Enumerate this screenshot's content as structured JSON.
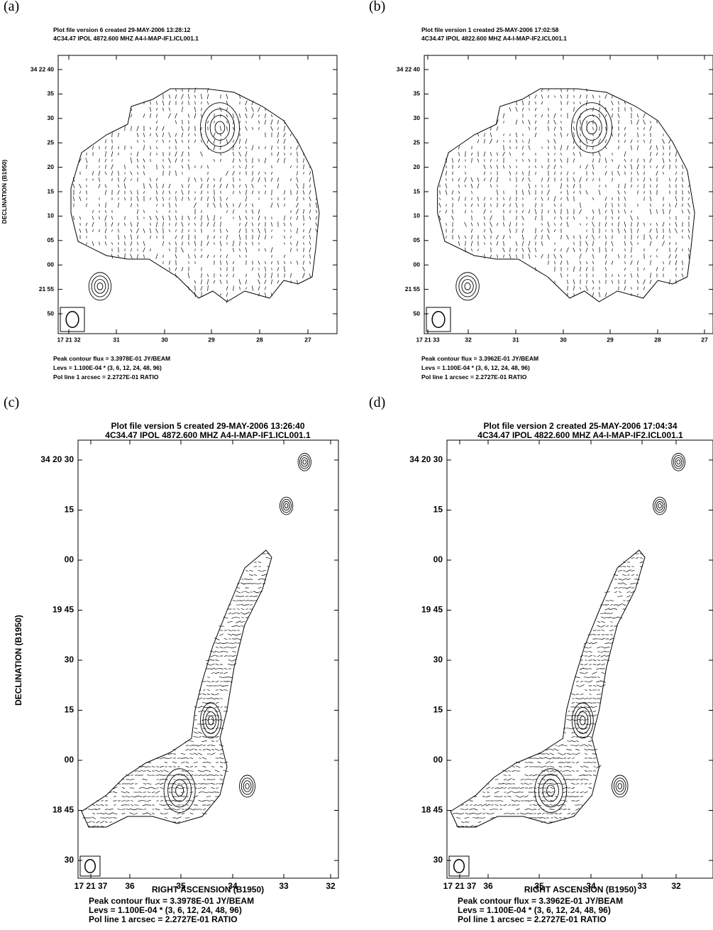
{
  "panels": [
    {
      "label": "(a)",
      "header": [
        "Plot file version 6  created 29-MAY-2006 13:28:12",
        "4C34.47  IPOL  4872.600 MHZ  A4-I-MAP-IF1.ICL001.1"
      ],
      "y_axis_label": "DECLINATION (B1950)",
      "y_ticks": [
        "34 22 40",
        "35",
        "30",
        "25",
        "20",
        "15",
        "10",
        "05",
        "00",
        "21 55",
        "50"
      ],
      "x_ticks": [
        "17 21 32",
        "31",
        "30",
        "29",
        "28",
        "27"
      ],
      "footer": [
        "Peak contour flux =  3.3978E-01 JY/BEAM",
        "Levs = 1.100E-04 * (3, 6, 12, 24, 48, 96)",
        "Pol line 1 arcsec =  2.2727E-01 RATIO"
      ]
    },
    {
      "label": "(b)",
      "header": [
        "Plot file version 1  created 25-MAY-2006 17:02:58",
        "4C34.47  IPOL  4822.600 MHZ  A4-I-MAP-IF2.ICL001.1"
      ],
      "y_ticks": [
        "34 22 40",
        "35",
        "30",
        "25",
        "20",
        "15",
        "10",
        "05",
        "00",
        "21 55",
        "50"
      ],
      "x_ticks": [
        "17 21 33",
        "32",
        "31",
        "30",
        "29",
        "28",
        "27"
      ],
      "footer": [
        "Peak contour flux =  3.3962E-01 JY/BEAM",
        "Levs = 1.100E-04 * (3, 6, 12, 24, 48, 96)",
        "Pol line 1 arcsec =  2.2727E-01 RATIO"
      ]
    },
    {
      "label": "(c)",
      "header": [
        "Plot file version 5  created 29-MAY-2006 13:26:40",
        "4C34.47  IPOL  4872.600 MHZ  A4-I-MAP-IF1.ICL001.1"
      ],
      "y_axis_label": "DECLINATION (B1950)",
      "x_axis_label": "RIGHT ASCENSION (B1950)",
      "y_ticks": [
        "34 20 30",
        "15",
        "00",
        "19 45",
        "30",
        "15",
        "00",
        "18 45",
        "30"
      ],
      "x_ticks": [
        "17 21 37",
        "36",
        "35",
        "34",
        "33",
        "32"
      ],
      "footer": [
        "Peak contour flux =  3.3978E-01 JY/BEAM",
        "Levs = 1.100E-04 * (3, 6, 12, 24, 48, 96)",
        "Pol line 1 arcsec =  2.2727E-01 RATIO"
      ]
    },
    {
      "label": "(d)",
      "header": [
        "Plot file version 2  created 25-MAY-2006 17:04:34",
        "4C34.47  IPOL  4822.600 MHZ  A4-I-MAP-IF2.ICL001.1"
      ],
      "x_axis_label": "RIGHT ASCENSION (B1950)",
      "y_ticks": [
        "34 20 30",
        "15",
        "00",
        "19 45",
        "30",
        "15",
        "00",
        "18 45",
        "30"
      ],
      "x_ticks": [
        "17 21 37",
        "36",
        "35",
        "34",
        "33",
        "32"
      ],
      "footer": [
        "Peak contour flux =  3.3962E-01 JY/BEAM",
        "Levs = 1.100E-04 * (3, 6, 12, 24, 48, 96)",
        "Pol line 1 arcsec =  2.2727E-01 RATIO"
      ]
    }
  ]
}
